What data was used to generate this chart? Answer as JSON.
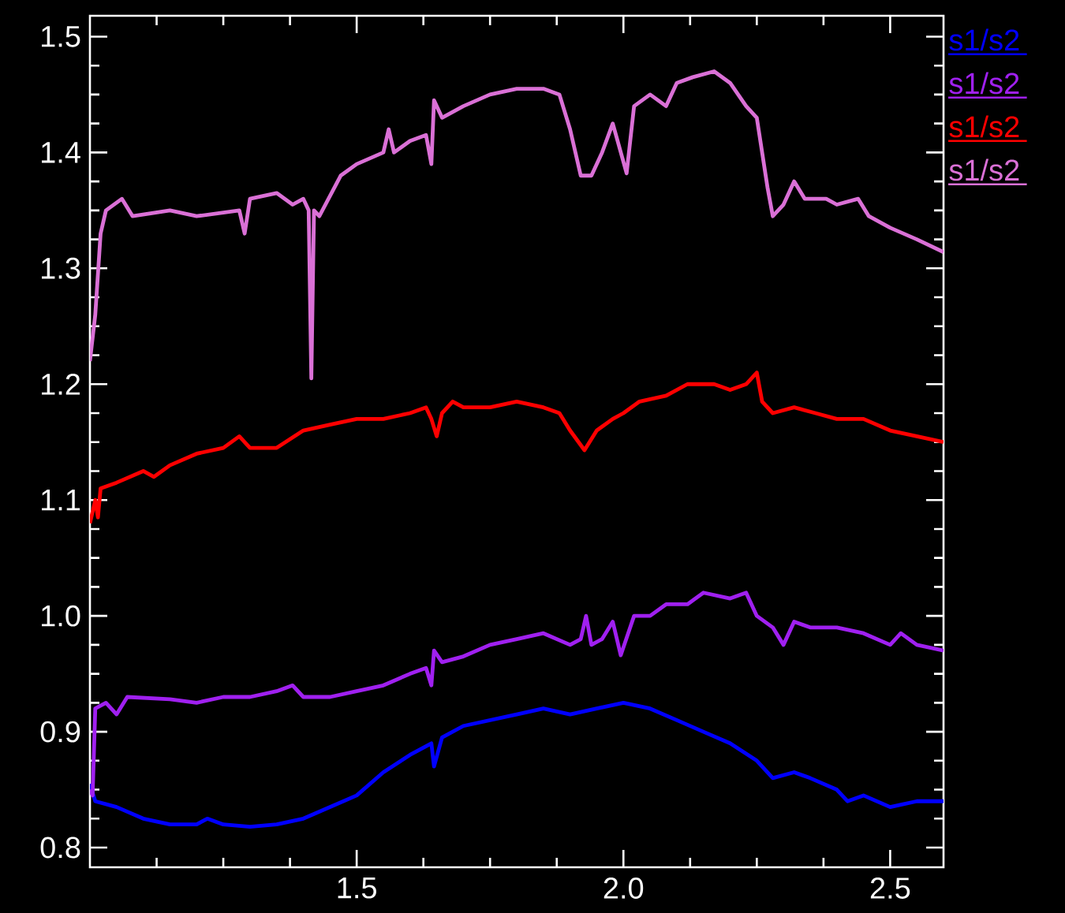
{
  "chart_data": {
    "type": "line",
    "xlim": [
      1.0,
      2.6
    ],
    "ylim": [
      0.783,
      1.518
    ],
    "xticks": [
      {
        "value": 1.125,
        "label": null
      },
      {
        "value": 1.25,
        "label": null
      },
      {
        "value": 1.375,
        "label": null
      },
      {
        "value": 1.5,
        "label": "1.5"
      },
      {
        "value": 1.625,
        "label": null
      },
      {
        "value": 1.75,
        "label": null
      },
      {
        "value": 1.875,
        "label": null
      },
      {
        "value": 2.0,
        "label": "2.0"
      },
      {
        "value": 2.125,
        "label": null
      },
      {
        "value": 2.25,
        "label": null
      },
      {
        "value": 2.375,
        "label": null
      },
      {
        "value": 2.5,
        "label": "2.5"
      }
    ],
    "yticks": [
      {
        "value": 0.8,
        "label": "0.8"
      },
      {
        "value": 0.825,
        "label": null
      },
      {
        "value": 0.85,
        "label": null
      },
      {
        "value": 0.875,
        "label": null
      },
      {
        "value": 0.9,
        "label": "0.9"
      },
      {
        "value": 0.925,
        "label": null
      },
      {
        "value": 0.95,
        "label": null
      },
      {
        "value": 0.975,
        "label": null
      },
      {
        "value": 1.0,
        "label": "1.0"
      },
      {
        "value": 1.025,
        "label": null
      },
      {
        "value": 1.05,
        "label": null
      },
      {
        "value": 1.075,
        "label": null
      },
      {
        "value": 1.1,
        "label": "1.1"
      },
      {
        "value": 1.125,
        "label": null
      },
      {
        "value": 1.15,
        "label": null
      },
      {
        "value": 1.175,
        "label": null
      },
      {
        "value": 1.2,
        "label": "1.2"
      },
      {
        "value": 1.225,
        "label": null
      },
      {
        "value": 1.25,
        "label": null
      },
      {
        "value": 1.275,
        "label": null
      },
      {
        "value": 1.3,
        "label": "1.3"
      },
      {
        "value": 1.325,
        "label": null
      },
      {
        "value": 1.35,
        "label": null
      },
      {
        "value": 1.375,
        "label": null
      },
      {
        "value": 1.4,
        "label": "1.4"
      },
      {
        "value": 1.425,
        "label": null
      },
      {
        "value": 1.45,
        "label": null
      },
      {
        "value": 1.475,
        "label": null
      },
      {
        "value": 1.5,
        "label": "1.5"
      }
    ],
    "grid": false,
    "legend": "top right",
    "marker": "none",
    "line_style": "solid",
    "series": [
      {
        "name": "s1/s2",
        "color": "#0000ff",
        "x": [
          1.0,
          1.01,
          1.05,
          1.1,
          1.15,
          1.2,
          1.22,
          1.25,
          1.3,
          1.35,
          1.4,
          1.45,
          1.5,
          1.55,
          1.6,
          1.64,
          1.645,
          1.66,
          1.7,
          1.8,
          1.85,
          1.9,
          1.95,
          2.0,
          2.05,
          2.1,
          2.15,
          2.2,
          2.25,
          2.28,
          2.32,
          2.35,
          2.4,
          2.42,
          2.45,
          2.5,
          2.55,
          2.6
        ],
        "values": [
          0.855,
          0.84,
          0.835,
          0.825,
          0.82,
          0.82,
          0.825,
          0.82,
          0.818,
          0.82,
          0.825,
          0.835,
          0.845,
          0.865,
          0.88,
          0.89,
          0.87,
          0.895,
          0.905,
          0.915,
          0.92,
          0.915,
          0.92,
          0.925,
          0.92,
          0.91,
          0.9,
          0.89,
          0.875,
          0.86,
          0.865,
          0.86,
          0.85,
          0.84,
          0.845,
          0.835,
          0.84,
          0.84
        ]
      },
      {
        "name": "s1/s2",
        "color": "#a020f0",
        "x": [
          1.0,
          1.005,
          1.01,
          1.03,
          1.05,
          1.07,
          1.15,
          1.2,
          1.25,
          1.3,
          1.35,
          1.38,
          1.4,
          1.45,
          1.5,
          1.55,
          1.6,
          1.63,
          1.64,
          1.645,
          1.66,
          1.7,
          1.75,
          1.8,
          1.85,
          1.9,
          1.92,
          1.93,
          1.94,
          1.96,
          1.98,
          1.995,
          2.02,
          2.05,
          2.08,
          2.12,
          2.15,
          2.2,
          2.23,
          2.25,
          2.28,
          2.3,
          2.32,
          2.35,
          2.4,
          2.45,
          2.5,
          2.52,
          2.55,
          2.6
        ],
        "values": [
          0.85,
          0.845,
          0.92,
          0.925,
          0.915,
          0.93,
          0.928,
          0.925,
          0.93,
          0.93,
          0.935,
          0.94,
          0.93,
          0.93,
          0.935,
          0.94,
          0.95,
          0.955,
          0.94,
          0.97,
          0.96,
          0.965,
          0.975,
          0.98,
          0.985,
          0.975,
          0.98,
          1.0,
          0.975,
          0.98,
          0.995,
          0.966,
          1.0,
          1.0,
          1.01,
          1.01,
          1.02,
          1.015,
          1.02,
          1.0,
          0.99,
          0.975,
          0.995,
          0.99,
          0.99,
          0.985,
          0.975,
          0.985,
          0.975,
          0.97
        ]
      },
      {
        "name": "s1/s2",
        "color": "#ff0000",
        "x": [
          1.0,
          1.01,
          1.015,
          1.02,
          1.05,
          1.1,
          1.12,
          1.15,
          1.2,
          1.25,
          1.28,
          1.3,
          1.35,
          1.4,
          1.45,
          1.5,
          1.55,
          1.6,
          1.63,
          1.64,
          1.65,
          1.66,
          1.68,
          1.7,
          1.75,
          1.8,
          1.85,
          1.88,
          1.9,
          1.927,
          1.95,
          1.98,
          2.0,
          2.03,
          2.08,
          2.12,
          2.17,
          2.2,
          2.23,
          2.25,
          2.26,
          2.28,
          2.32,
          2.36,
          2.4,
          2.45,
          2.5,
          2.55,
          2.6
        ],
        "values": [
          1.08,
          1.1,
          1.085,
          1.11,
          1.115,
          1.125,
          1.12,
          1.13,
          1.14,
          1.145,
          1.155,
          1.145,
          1.145,
          1.16,
          1.165,
          1.17,
          1.17,
          1.175,
          1.18,
          1.17,
          1.155,
          1.175,
          1.185,
          1.18,
          1.18,
          1.185,
          1.18,
          1.175,
          1.16,
          1.143,
          1.16,
          1.17,
          1.175,
          1.185,
          1.19,
          1.2,
          1.2,
          1.195,
          1.2,
          1.21,
          1.185,
          1.175,
          1.18,
          1.175,
          1.17,
          1.17,
          1.16,
          1.155,
          1.15
        ]
      },
      {
        "name": "s1/s2",
        "color": "#da70d6",
        "x": [
          1.0,
          1.01,
          1.02,
          1.03,
          1.06,
          1.08,
          1.15,
          1.2,
          1.28,
          1.29,
          1.3,
          1.35,
          1.38,
          1.4,
          1.41,
          1.415,
          1.42,
          1.43,
          1.47,
          1.5,
          1.55,
          1.56,
          1.57,
          1.6,
          1.63,
          1.64,
          1.645,
          1.66,
          1.7,
          1.75,
          1.8,
          1.85,
          1.88,
          1.9,
          1.92,
          1.94,
          1.96,
          1.98,
          2.006,
          2.02,
          2.05,
          2.08,
          2.1,
          2.13,
          2.17,
          2.2,
          2.23,
          2.25,
          2.27,
          2.28,
          2.3,
          2.32,
          2.34,
          2.38,
          2.4,
          2.44,
          2.46,
          2.5,
          2.55,
          2.6
        ],
        "values": [
          1.22,
          1.26,
          1.33,
          1.35,
          1.36,
          1.345,
          1.35,
          1.345,
          1.35,
          1.33,
          1.36,
          1.365,
          1.355,
          1.36,
          1.35,
          1.205,
          1.35,
          1.345,
          1.38,
          1.39,
          1.4,
          1.42,
          1.4,
          1.41,
          1.415,
          1.39,
          1.445,
          1.43,
          1.44,
          1.45,
          1.455,
          1.455,
          1.45,
          1.42,
          1.38,
          1.38,
          1.4,
          1.425,
          1.382,
          1.44,
          1.45,
          1.44,
          1.46,
          1.465,
          1.47,
          1.46,
          1.44,
          1.43,
          1.37,
          1.345,
          1.355,
          1.375,
          1.36,
          1.36,
          1.355,
          1.36,
          1.345,
          1.335,
          1.325,
          1.314
        ]
      }
    ]
  }
}
